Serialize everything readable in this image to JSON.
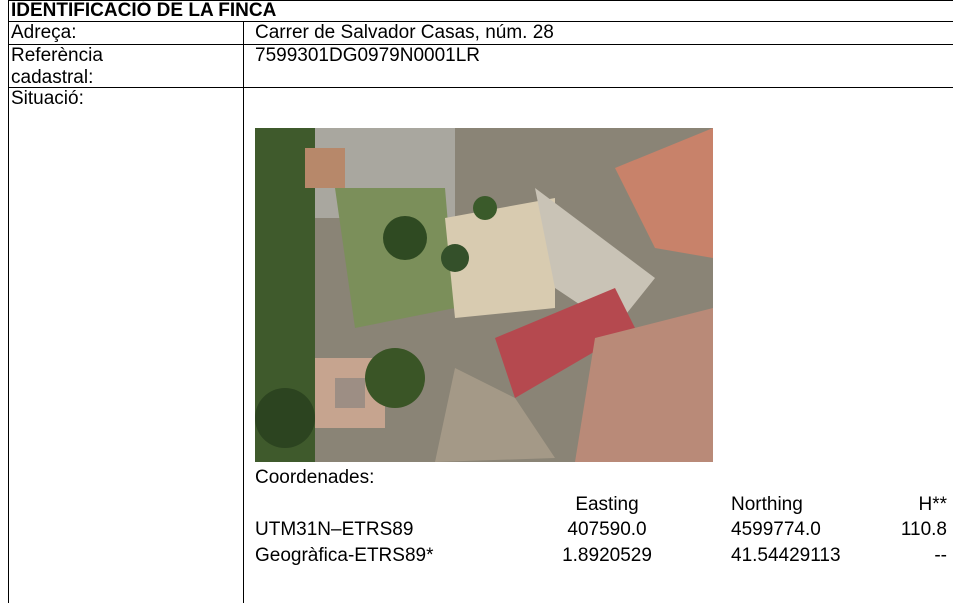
{
  "header": {
    "title": "IDENTIFICACIÓ DE LA FINCA"
  },
  "address": {
    "label": "Adreça:",
    "value": "Carrer de Salvador Casas, núm. 28"
  },
  "cadastral_reference": {
    "label": "Referència cadastral:",
    "value": "7599301DG0979N0001LR"
  },
  "location": {
    "label": "Situació:",
    "coordinates_label": "Coordenades:",
    "columns": [
      "Easting",
      "Northing",
      "H**"
    ],
    "rows": [
      {
        "system": "UTM31N–ETRS89",
        "values": [
          "407590.0",
          "4599774.0",
          "110.8"
        ]
      },
      {
        "system": "Geogràfica-ETRS89*",
        "values": [
          "1.8920529",
          "41.54429113",
          "--"
        ]
      }
    ]
  }
}
